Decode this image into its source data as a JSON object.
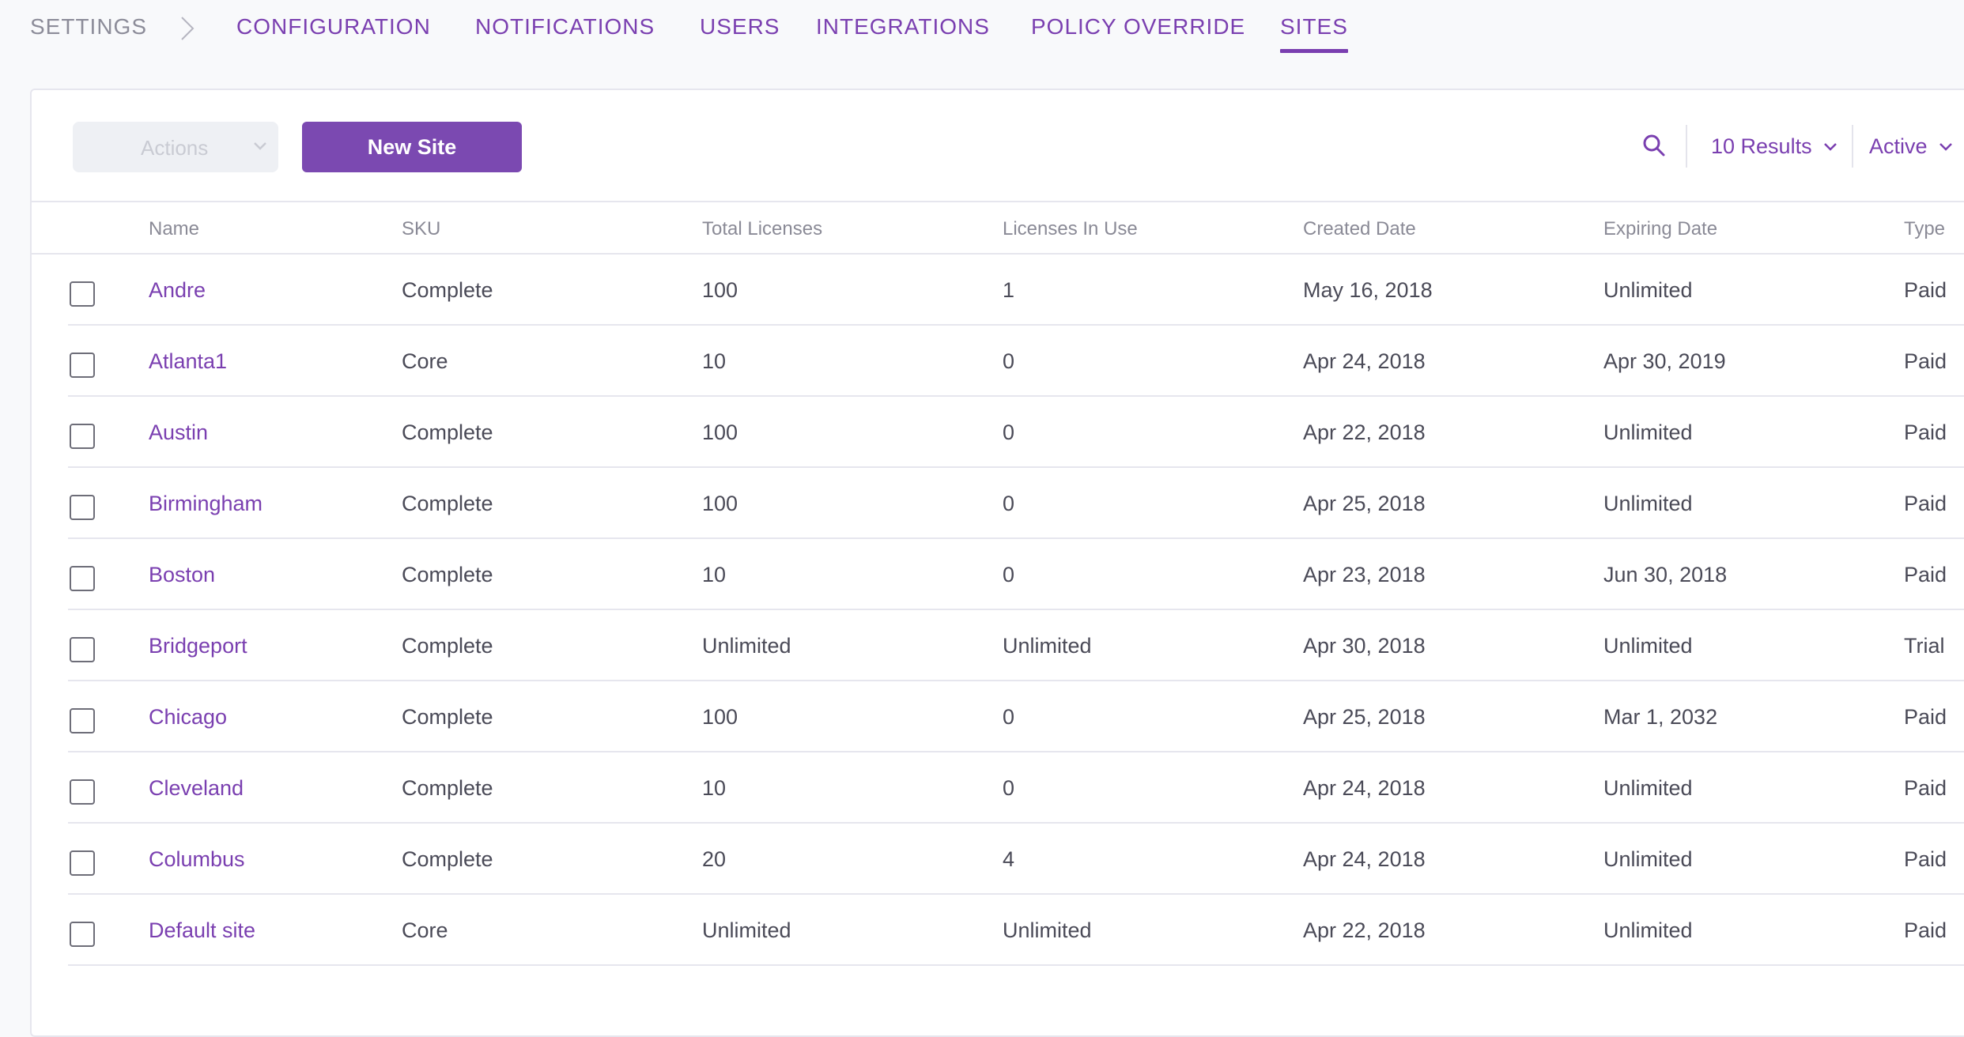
{
  "breadcrumb": {
    "root": "SETTINGS"
  },
  "tabs": [
    {
      "label": "CONFIGURATION"
    },
    {
      "label": "NOTIFICATIONS"
    },
    {
      "label": "USERS"
    },
    {
      "label": "INTEGRATIONS"
    },
    {
      "label": "POLICY OVERRIDE"
    },
    {
      "label": "SITES"
    }
  ],
  "active_tab": "SITES",
  "toolbar": {
    "actions_label": "Actions",
    "new_site_label": "New Site",
    "results_label": "10 Results",
    "status_label": "Active",
    "search_icon": "search-icon"
  },
  "table": {
    "columns": [
      "Name",
      "SKU",
      "Total Licenses",
      "Licenses In Use",
      "Created Date",
      "Expiring Date",
      "Type"
    ],
    "rows": [
      {
        "name": "Andre",
        "sku": "Complete",
        "total": "100",
        "in_use": "1",
        "created": "May 16, 2018",
        "expiring": "Unlimited",
        "type": "Paid"
      },
      {
        "name": "Atlanta1",
        "sku": "Core",
        "total": "10",
        "in_use": "0",
        "created": "Apr 24, 2018",
        "expiring": "Apr 30, 2019",
        "type": "Paid"
      },
      {
        "name": "Austin",
        "sku": "Complete",
        "total": "100",
        "in_use": "0",
        "created": "Apr 22, 2018",
        "expiring": "Unlimited",
        "type": "Paid"
      },
      {
        "name": "Birmingham",
        "sku": "Complete",
        "total": "100",
        "in_use": "0",
        "created": "Apr 25, 2018",
        "expiring": "Unlimited",
        "type": "Paid"
      },
      {
        "name": "Boston",
        "sku": "Complete",
        "total": "10",
        "in_use": "0",
        "created": "Apr 23, 2018",
        "expiring": "Jun 30, 2018",
        "type": "Paid"
      },
      {
        "name": "Bridgeport",
        "sku": "Complete",
        "total": "Unlimited",
        "in_use": "Unlimited",
        "created": "Apr 30, 2018",
        "expiring": "Unlimited",
        "type": "Trial"
      },
      {
        "name": "Chicago",
        "sku": "Complete",
        "total": "100",
        "in_use": "0",
        "created": "Apr 25, 2018",
        "expiring": "Mar 1, 2032",
        "type": "Paid"
      },
      {
        "name": "Cleveland",
        "sku": "Complete",
        "total": "10",
        "in_use": "0",
        "created": "Apr 24, 2018",
        "expiring": "Unlimited",
        "type": "Paid"
      },
      {
        "name": "Columbus",
        "sku": "Complete",
        "total": "20",
        "in_use": "4",
        "created": "Apr 24, 2018",
        "expiring": "Unlimited",
        "type": "Paid"
      },
      {
        "name": "Default site",
        "sku": "Core",
        "total": "Unlimited",
        "in_use": "Unlimited",
        "created": "Apr 22, 2018",
        "expiring": "Unlimited",
        "type": "Paid"
      }
    ]
  },
  "colors": {
    "accent": "#7a3fb0",
    "primary_button": "#7b49b1",
    "text": "#4a4a57",
    "muted": "#8a8a96",
    "border": "#e6e6ee"
  }
}
